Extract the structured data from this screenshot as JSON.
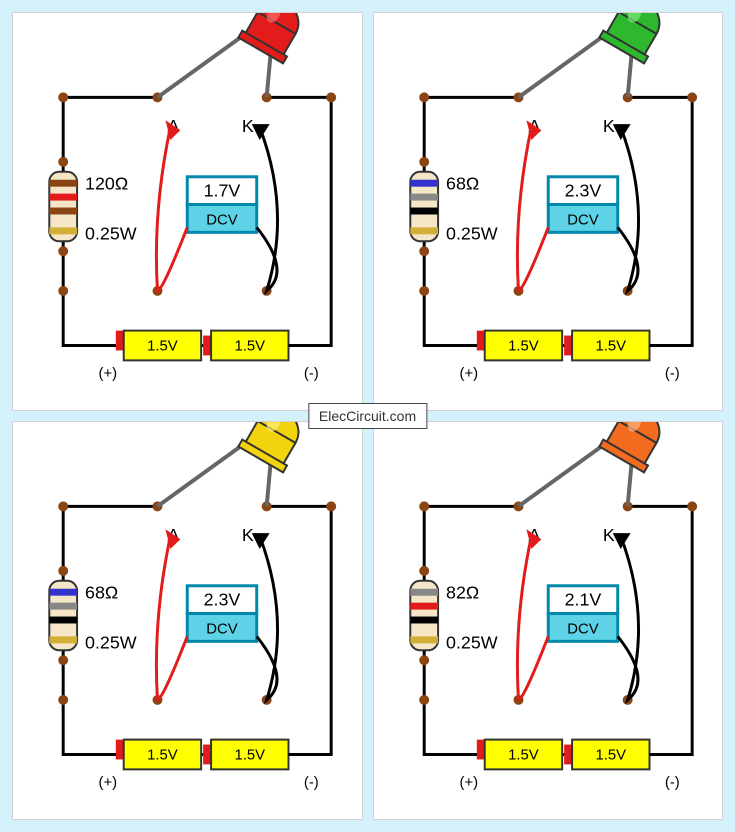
{
  "watermark": "ElecCircuit.com",
  "panels": [
    {
      "led_color": "#e21b1b",
      "led_highlight": "#ff6b6b",
      "resistor_value": "120Ω",
      "resistor_power": "0.25W",
      "resistor_bands": [
        "#8b4513",
        "#e21b1b",
        "#8b4513",
        "#d4af37"
      ],
      "meter_reading": "1.7V",
      "meter_label": "DCV",
      "battery1": "1.5V",
      "battery2": "1.5V",
      "anode_label": "A",
      "cathode_label": "K",
      "pos_label": "(+)",
      "neg_label": "(-)"
    },
    {
      "led_color": "#2eb82e",
      "led_highlight": "#7de87d",
      "resistor_value": "68Ω",
      "resistor_power": "0.25W",
      "resistor_bands": [
        "#3333cc",
        "#888888",
        "#000000",
        "#d4af37"
      ],
      "meter_reading": "2.3V",
      "meter_label": "DCV",
      "battery1": "1.5V",
      "battery2": "1.5V",
      "anode_label": "A",
      "cathode_label": "K",
      "pos_label": "(+)",
      "neg_label": "(-)"
    },
    {
      "led_color": "#f2d40e",
      "led_highlight": "#fff176",
      "resistor_value": "68Ω",
      "resistor_power": "0.25W",
      "resistor_bands": [
        "#3333cc",
        "#888888",
        "#000000",
        "#d4af37"
      ],
      "meter_reading": "2.3V",
      "meter_label": "DCV",
      "battery1": "1.5V",
      "battery2": "1.5V",
      "anode_label": "A",
      "cathode_label": "K",
      "pos_label": "(+)",
      "neg_label": "(-)"
    },
    {
      "led_color": "#f26b1f",
      "led_highlight": "#ffb380",
      "resistor_value": "82Ω",
      "resistor_power": "0.25W",
      "resistor_bands": [
        "#888888",
        "#e21b1b",
        "#000000",
        "#d4af37"
      ],
      "meter_reading": "2.1V",
      "meter_label": "DCV",
      "battery1": "1.5V",
      "battery2": "1.5V",
      "anode_label": "A",
      "cathode_label": "K",
      "pos_label": "(+)",
      "neg_label": "(-)"
    }
  ],
  "styling": {
    "page_bg": "#d4f0fa",
    "panel_bg": "#ffffff",
    "wire_color": "#000000",
    "wire_width": 3,
    "node_color": "#8b4513",
    "node_radius": 5,
    "battery_fill": "#ffff00",
    "battery_cap": "#e21b1b",
    "meter_top_fill": "#ffffff",
    "meter_bottom_fill": "#5ed3e8",
    "meter_border": "#0088aa",
    "arrow_red": "#e21b1b",
    "arrow_black": "#000000",
    "resistor_body": "#f5e6c8",
    "font_size_label": 18,
    "font_size_small": 15
  }
}
